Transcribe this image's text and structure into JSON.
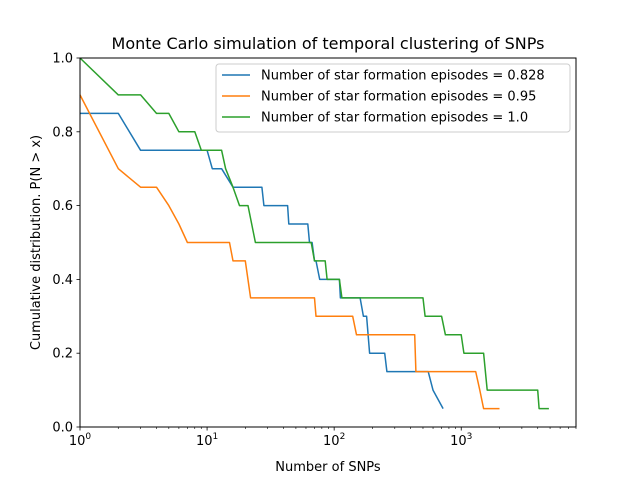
{
  "chart_data": {
    "type": "line",
    "title": "Monte Carlo simulation of temporal clustering of SNPs",
    "xlabel": "Number of SNPs",
    "ylabel": "Cumulative distribution. P(N > x)",
    "xscale": "log",
    "xlim": [
      1,
      8000
    ],
    "ylim": [
      0.0,
      1.0
    ],
    "grid": false,
    "legend_position": "top-right",
    "x_tick_labels": [
      {
        "base": "10",
        "exp": "0"
      },
      {
        "base": "10",
        "exp": "1"
      },
      {
        "base": "10",
        "exp": "2"
      },
      {
        "base": "10",
        "exp": "3"
      }
    ],
    "y_tick_labels": [
      "0.0",
      "0.2",
      "0.4",
      "0.6",
      "0.8",
      "1.0"
    ],
    "series": [
      {
        "name": "Number of star formation episodes = 0.828",
        "color": "#1f77b4",
        "x": [
          1,
          2,
          3,
          10,
          11,
          13,
          16,
          27,
          28,
          43,
          44,
          62,
          64,
          67,
          70,
          72,
          77,
          110,
          112,
          160,
          170,
          180,
          190,
          250,
          260,
          550,
          600,
          720
        ],
        "y": [
          0.85,
          0.85,
          0.75,
          0.75,
          0.7,
          0.7,
          0.65,
          0.65,
          0.6,
          0.6,
          0.55,
          0.55,
          0.5,
          0.5,
          0.45,
          0.45,
          0.4,
          0.4,
          0.35,
          0.35,
          0.3,
          0.3,
          0.2,
          0.2,
          0.15,
          0.15,
          0.1,
          0.05
        ]
      },
      {
        "name": "Number of star formation episodes = 0.95",
        "color": "#ff7f0e",
        "x": [
          1,
          2,
          3,
          4,
          5,
          6,
          7,
          15,
          16,
          20,
          22,
          70,
          72,
          140,
          150,
          430,
          440,
          1300,
          1400,
          1500,
          2000
        ],
        "y": [
          0.9,
          0.7,
          0.65,
          0.65,
          0.6,
          0.55,
          0.5,
          0.5,
          0.45,
          0.45,
          0.35,
          0.35,
          0.3,
          0.3,
          0.25,
          0.25,
          0.15,
          0.15,
          0.1,
          0.05,
          0.05
        ]
      },
      {
        "name": "Number of star formation episodes = 1.0",
        "color": "#2ca02c",
        "x": [
          1,
          2,
          3,
          4,
          5,
          6,
          8,
          9,
          13,
          14,
          16,
          18,
          21,
          24,
          66,
          70,
          85,
          88,
          110,
          115,
          500,
          520,
          700,
          750,
          1000,
          1050,
          1500,
          1600,
          4000,
          4100,
          4900
        ],
        "y": [
          1.0,
          0.9,
          0.9,
          0.85,
          0.85,
          0.8,
          0.8,
          0.75,
          0.75,
          0.7,
          0.65,
          0.6,
          0.6,
          0.5,
          0.5,
          0.45,
          0.45,
          0.4,
          0.4,
          0.35,
          0.35,
          0.3,
          0.3,
          0.25,
          0.25,
          0.2,
          0.2,
          0.1,
          0.1,
          0.05,
          0.05
        ]
      }
    ]
  }
}
